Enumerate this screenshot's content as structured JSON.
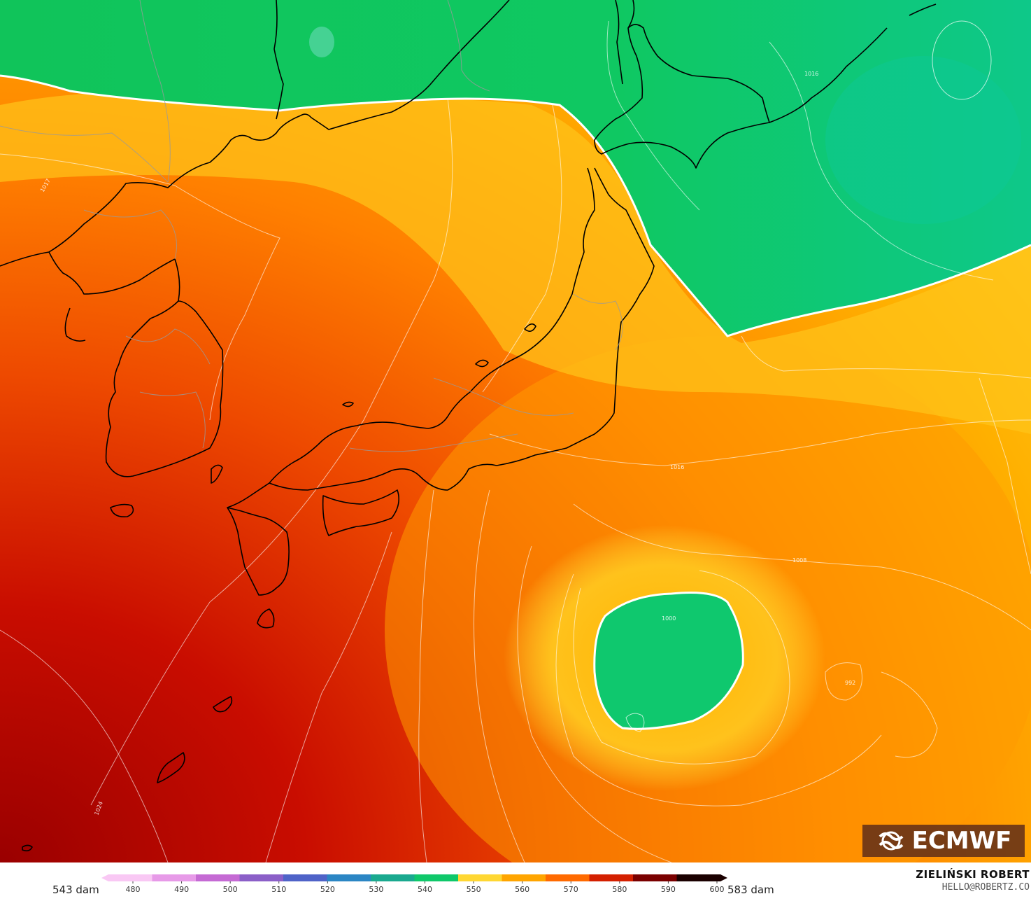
{
  "map": {
    "contour_labels": [
      "1016",
      "1016",
      "1017",
      "1008",
      "1000",
      "992",
      "1024"
    ]
  },
  "logo": {
    "text": "ECMWF",
    "icon": "ecmwf-logo-icon"
  },
  "colorbar": {
    "left_label": "543 dam",
    "right_label": "583 dam",
    "ticks": [
      "480",
      "490",
      "500",
      "510",
      "520",
      "530",
      "540",
      "550",
      "560",
      "570",
      "580",
      "590",
      "600"
    ],
    "colors": [
      "#f9c8f4",
      "#e79ae8",
      "#c56ad4",
      "#8b5fc8",
      "#4f63c8",
      "#2b86c4",
      "#1aa98f",
      "#0fc86a",
      "#ffd733",
      "#ffa500",
      "#ff6a00",
      "#d42000",
      "#7a0000",
      "#1a0000"
    ]
  },
  "credits": {
    "name": "ZIELIŃSKI ROBERT",
    "email": "HELLO@ROBERTZ.CO"
  }
}
